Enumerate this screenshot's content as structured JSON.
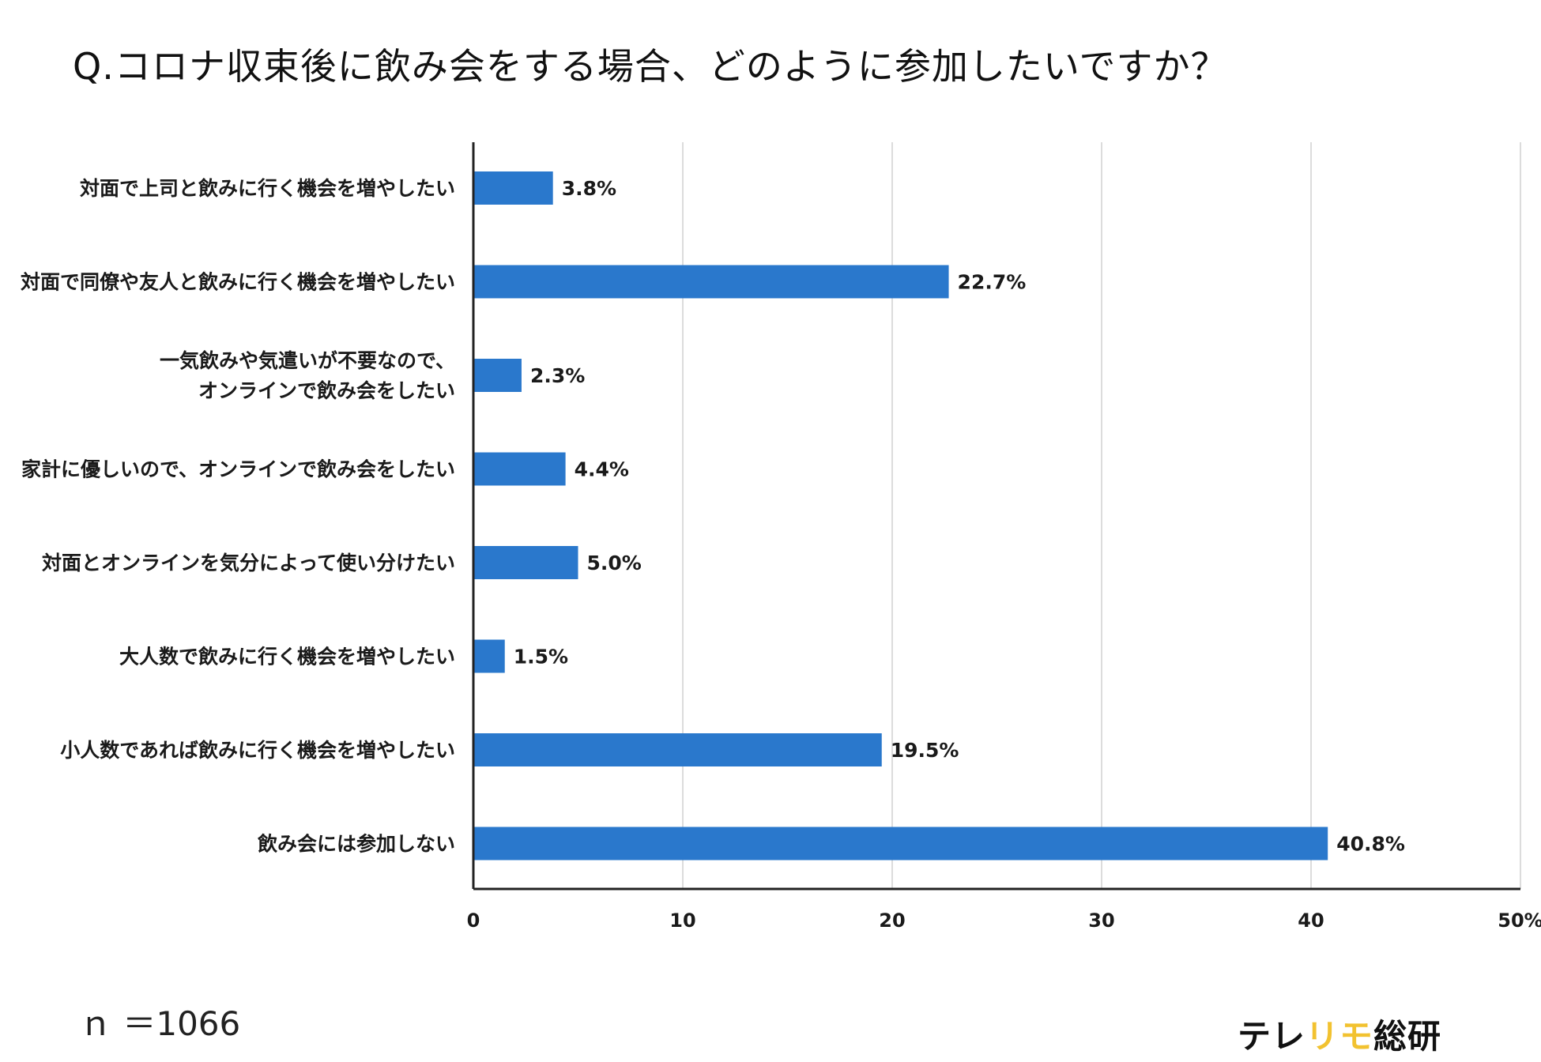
{
  "question": "Q.コロナ収束後に飲み会をする場合、どのように参加したいですか？",
  "sample_size": "ｎ ＝1066",
  "brand": {
    "part1": "テレ",
    "part2": "リモ",
    "part3": "総研",
    "accent_color": "#f2c230"
  },
  "chart_data": {
    "type": "bar",
    "orientation": "horizontal",
    "title": "Q.コロナ収束後に飲み会をする場合、どのように参加したいですか？",
    "bar_color": "#2a78cc",
    "categories": [
      [
        "対面で上司と飲みに行く機会を増やしたい"
      ],
      [
        "対面で同僚や友人と飲みに行く機会を増やしたい"
      ],
      [
        "一気飲みや気遣いが不要なので、",
        "オンラインで飲み会をしたい"
      ],
      [
        "家計に優しいので、オンラインで飲み会をしたい"
      ],
      [
        "対面とオンラインを気分によって使い分けたい"
      ],
      [
        "大人数で飲みに行く機会を増やしたい"
      ],
      [
        "小人数であれば飲みに行く機会を増やしたい"
      ],
      [
        "飲み会には参加しない"
      ]
    ],
    "values": [
      3.8,
      22.7,
      2.3,
      4.4,
      5.0,
      1.5,
      19.5,
      40.8
    ],
    "value_labels": [
      "3.8%",
      "22.7%",
      "2.3%",
      "4.4%",
      "5.0%",
      "1.5%",
      "19.5%",
      "40.8%"
    ],
    "xlim": [
      0,
      50
    ],
    "xticks": [
      0,
      10,
      20,
      30,
      40,
      50
    ],
    "xtick_labels": [
      "0",
      "10",
      "20",
      "30",
      "40",
      "50%"
    ],
    "grid": true,
    "xlabel": "",
    "ylabel": ""
  }
}
